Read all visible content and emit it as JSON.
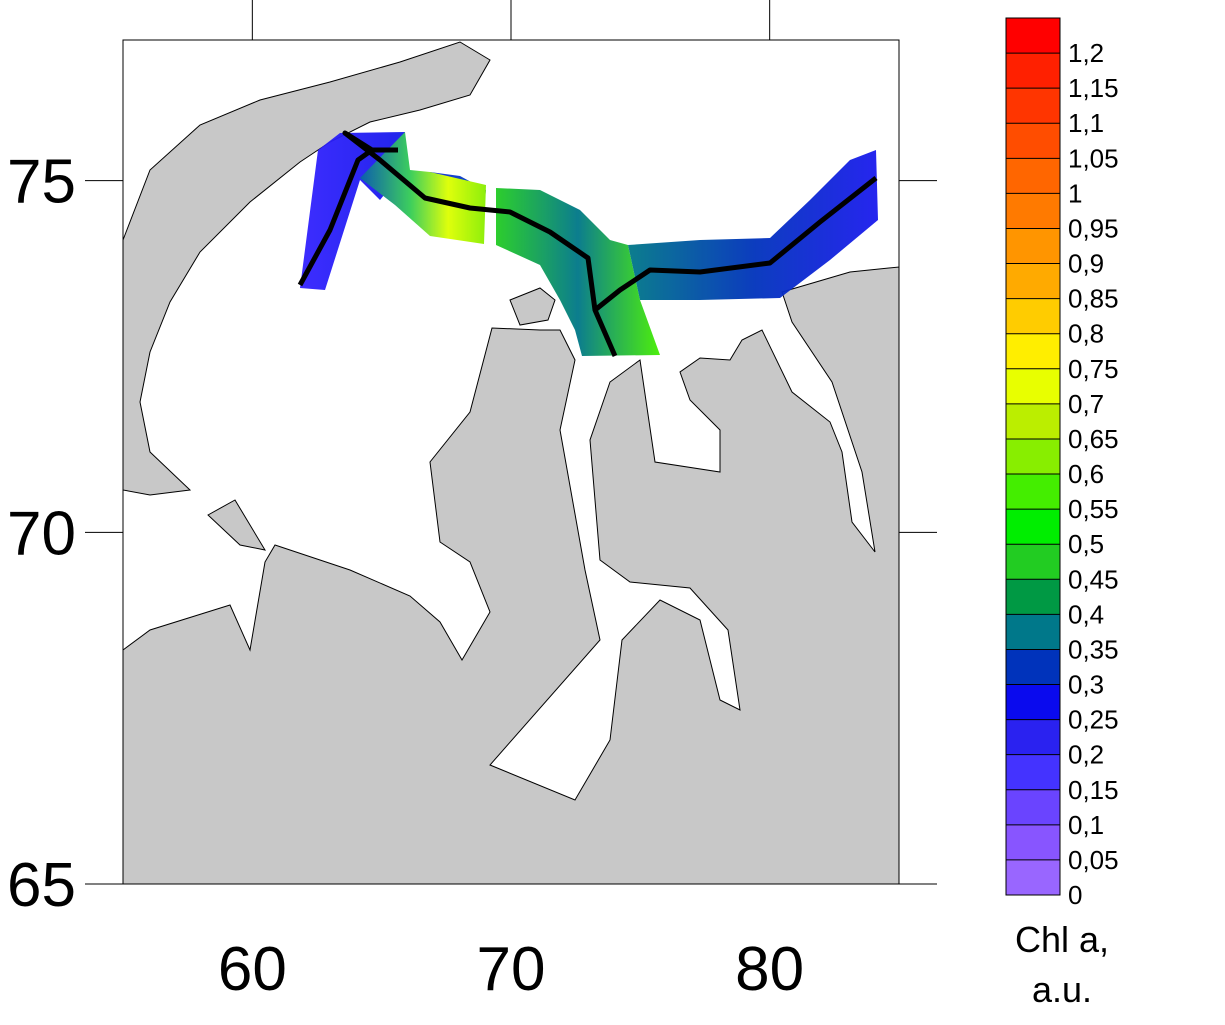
{
  "map": {
    "xlim": [
      55,
      85
    ],
    "ylim": [
      65,
      77
    ],
    "xticks": [
      60,
      70,
      80
    ],
    "yticks": [
      65,
      70,
      75
    ],
    "colorbar": {
      "lim": [
        0,
        1.25
      ],
      "ticks": [
        0,
        {
          "value": 0.05,
          "label": "0,05"
        },
        {
          "value": 0.1,
          "label": "0,1"
        },
        {
          "value": 0.15,
          "label": "0,15"
        },
        {
          "value": 0.2,
          "label": "0,2"
        },
        {
          "value": 0.25,
          "label": "0,25"
        },
        {
          "value": 0.3,
          "label": "0,3"
        },
        {
          "value": 0.35,
          "label": "0,35"
        },
        {
          "value": 0.4,
          "label": "0,4"
        },
        {
          "value": 0.45,
          "label": "0,45"
        },
        {
          "value": 0.5,
          "label": "0,5"
        },
        {
          "value": 0.55,
          "label": "0,55"
        },
        {
          "value": 0.6,
          "label": "0,6"
        },
        {
          "value": 0.65,
          "label": "0,65"
        },
        {
          "value": 0.7,
          "label": "0,7"
        },
        {
          "value": 0.75,
          "label": "0,75"
        },
        {
          "value": 0.8,
          "label": "0,8"
        },
        {
          "value": 0.85,
          "label": "0,85"
        },
        {
          "value": 0.9,
          "label": "0,9"
        },
        {
          "value": 0.95,
          "label": "0,95"
        },
        1,
        {
          "value": 1.05,
          "label": "1,05"
        },
        {
          "value": 1.1,
          "label": "1,1"
        },
        {
          "value": 1.15,
          "label": "1,15"
        },
        {
          "value": 1.2,
          "label": "1,2"
        }
      ],
      "colors": [
        "#9966ff",
        "#8855ff",
        "#6a44ff",
        "#4433ff",
        "#2a22f0",
        "#0a0aee",
        "#0033bb",
        "#00788a",
        "#009944",
        "#22cc22",
        "#00ee00",
        "#44ee00",
        "#88ee00",
        "#bbee00",
        "#e8ff00",
        "#ffee00",
        "#ffcc00",
        "#ffaa00",
        "#ff9500",
        "#ff7a00",
        "#ff6600",
        "#ff4d00",
        "#ff3500",
        "#ff2000",
        "#ff0000"
      ],
      "title": [
        "Chl a,",
        "a.u."
      ]
    }
  }
}
